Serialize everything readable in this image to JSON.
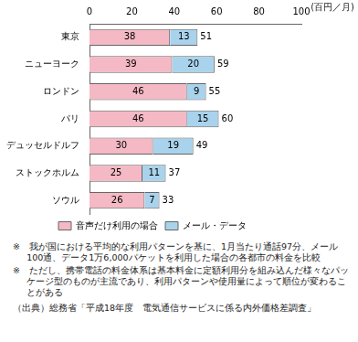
{
  "chart_data": {
    "type": "bar",
    "orientation": "horizontal",
    "stacked": true,
    "xlabel": "(百円／月)",
    "categories": [
      "東京",
      "ニューヨーク",
      "ロンドン",
      "パリ",
      "デュッセルドルフ",
      "ストックホルム",
      "ソウル"
    ],
    "series": [
      {
        "name": "音声だけ利用の場合",
        "color": "#f4b9c4",
        "values": [
          38,
          39,
          46,
          46,
          30,
          25,
          26
        ]
      },
      {
        "name": "メール・データ",
        "color": "#a9d3ec",
        "values": [
          13,
          20,
          9,
          15,
          19,
          11,
          7
        ]
      }
    ],
    "totals": [
      51,
      59,
      55,
      60,
      49,
      37,
      33
    ],
    "xlim": [
      0,
      100
    ],
    "xticks": [
      0,
      20,
      40,
      60,
      80,
      100
    ],
    "grid": false,
    "legend": "bottom",
    "data_labels": true,
    "notes": [
      "※　我が国における平均的な利用パターンを基に、1月当たり通話97分、メール100通、データ1万6,000パケットを利用した場合の各都市の料金を比較",
      "※　ただし、携帯電話の料金体系は基本料金に定額利用分を組み込んだ様々なパッケージ型のものが主流であり、利用パターンや使用量によって順位が変わることがある"
    ],
    "source": "（出典）総務省「平成18年度　電気通信サービスに係る内外価格差調査」"
  }
}
